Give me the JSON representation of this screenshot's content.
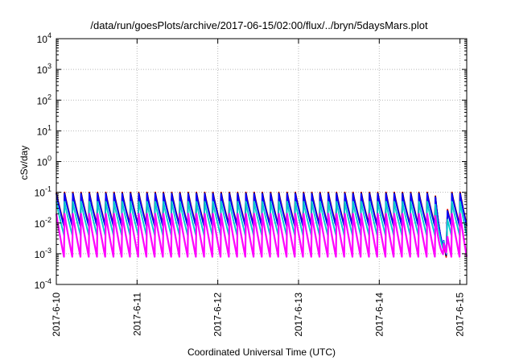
{
  "chart_data": {
    "type": "line",
    "title": "/data/run/goesPlots/archive/2017-06-15/02:00/flux/../bryn/5daysMars.plot",
    "xlabel": "Coordinated Universal Time (UTC)",
    "ylabel": "cSv/day",
    "yscale": "log",
    "ylim": [
      0.0001,
      10000
    ],
    "xlim": [
      "2017-06-10",
      "2017-06-15 02:00"
    ],
    "x_ticks": [
      "2017-6-10",
      "2017-6-11",
      "2017-6-12",
      "2017-6-13",
      "2017-6-14",
      "2017-6-15"
    ],
    "y_ticks": [
      {
        "base": "10",
        "exp": "-4"
      },
      {
        "base": "10",
        "exp": "-3"
      },
      {
        "base": "10",
        "exp": "-2"
      },
      {
        "base": "10",
        "exp": "-1"
      },
      {
        "base": "10",
        "exp": "0"
      },
      {
        "base": "10",
        "exp": "1"
      },
      {
        "base": "10",
        "exp": "2"
      },
      {
        "base": "10",
        "exp": "3"
      },
      {
        "base": "10",
        "exp": "4"
      }
    ],
    "grid": true,
    "sawtooth_period_hours": 2.45,
    "series": [
      {
        "color": "#ff0000",
        "peak": 0.1,
        "trough": 0.009
      },
      {
        "color": "#000000",
        "peak": 0.095,
        "trough": 0.008
      },
      {
        "color": "#0000ff",
        "peak": 0.09,
        "trough": 0.008
      },
      {
        "color": "#00cccc",
        "peak": 0.05,
        "trough": 0.004
      },
      {
        "color": "#ff00ff",
        "peak": 0.02,
        "trough": 0.0008
      }
    ],
    "end_dip": {
      "start": "2017-06-14 16:30",
      "end": "2017-06-14 20:00",
      "min_value": 0.0007
    }
  }
}
